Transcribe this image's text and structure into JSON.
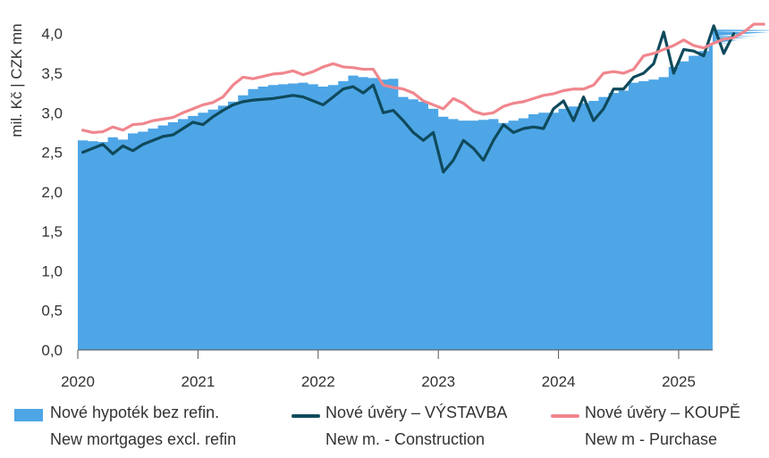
{
  "chart_data": {
    "type": "area",
    "ylabel": "mil. Kč  |  CZK mn",
    "ylim": [
      0,
      4.2
    ],
    "y_ticks": [
      "0,0",
      "0,5",
      "1,0",
      "1,5",
      "2,0",
      "2,5",
      "3,0",
      "3,5",
      "4,0"
    ],
    "x_ticks": [
      "2020",
      "2021",
      "2022",
      "2023",
      "2024",
      "2025"
    ],
    "x_start": "2020-01",
    "series": [
      {
        "name": "Nové hypoték bez refin.",
        "name_en": "New mortgages excl. refin",
        "kind": "area",
        "color": "#4ea6e6",
        "values": [
          2.65,
          2.64,
          2.63,
          2.69,
          2.66,
          2.74,
          2.76,
          2.8,
          2.84,
          2.88,
          2.92,
          2.96,
          3.0,
          3.04,
          3.09,
          3.14,
          3.22,
          3.3,
          3.33,
          3.35,
          3.36,
          3.37,
          3.38,
          3.36,
          3.33,
          3.35,
          3.4,
          3.47,
          3.45,
          3.44,
          3.42,
          3.43,
          3.2,
          3.17,
          3.14,
          3.05,
          2.95,
          2.92,
          2.9,
          2.9,
          2.91,
          2.92,
          2.87,
          2.9,
          2.93,
          2.98,
          3.0,
          3.0,
          3.05,
          3.08,
          3.12,
          3.15,
          3.2,
          3.25,
          3.28,
          3.38,
          3.4,
          3.42,
          3.45,
          3.58,
          3.65,
          3.72,
          3.78,
          3.88,
          3.9,
          3.88,
          3.92,
          3.95,
          3.97,
          4.02,
          4.04,
          4.05
        ]
      },
      {
        "name": "Nové úvěry – VÝSTAVBA",
        "name_en": "New m. - Construction",
        "kind": "line",
        "color": "#0f4a5c",
        "values": [
          2.5,
          2.55,
          2.6,
          2.48,
          2.58,
          2.52,
          2.6,
          2.65,
          2.7,
          2.72,
          2.8,
          2.88,
          2.85,
          2.95,
          3.03,
          3.1,
          3.14,
          3.16,
          3.17,
          3.18,
          3.2,
          3.22,
          3.2,
          3.15,
          3.1,
          3.2,
          3.3,
          3.33,
          3.25,
          3.35,
          3.0,
          3.03,
          2.9,
          2.75,
          2.65,
          2.75,
          2.25,
          2.4,
          2.65,
          2.55,
          2.4,
          2.65,
          2.85,
          2.75,
          2.8,
          2.82,
          2.8,
          3.05,
          3.15,
          2.9,
          3.2,
          2.9,
          3.05,
          3.3,
          3.3,
          3.45,
          3.5,
          3.62,
          4.02,
          3.5,
          3.8,
          3.78,
          3.72,
          4.1,
          3.75,
          4.0
        ]
      },
      {
        "name": "Nové úvěry – KOUPĚ",
        "name_en": "New m - Purchase",
        "kind": "line",
        "color": "#f0868d",
        "values": [
          2.78,
          2.75,
          2.76,
          2.82,
          2.78,
          2.85,
          2.86,
          2.9,
          2.92,
          2.94,
          3.0,
          3.05,
          3.1,
          3.13,
          3.2,
          3.35,
          3.45,
          3.43,
          3.46,
          3.49,
          3.5,
          3.53,
          3.48,
          3.52,
          3.58,
          3.62,
          3.58,
          3.57,
          3.55,
          3.55,
          3.35,
          3.32,
          3.3,
          3.25,
          3.15,
          3.1,
          3.05,
          3.18,
          3.12,
          3.02,
          2.98,
          3.0,
          3.08,
          3.12,
          3.14,
          3.18,
          3.22,
          3.24,
          3.28,
          3.3,
          3.3,
          3.35,
          3.5,
          3.52,
          3.5,
          3.55,
          3.72,
          3.75,
          3.8,
          3.85,
          3.92,
          3.85,
          3.82,
          3.88,
          3.93,
          3.95,
          4.02,
          4.12,
          4.12
        ]
      }
    ]
  }
}
